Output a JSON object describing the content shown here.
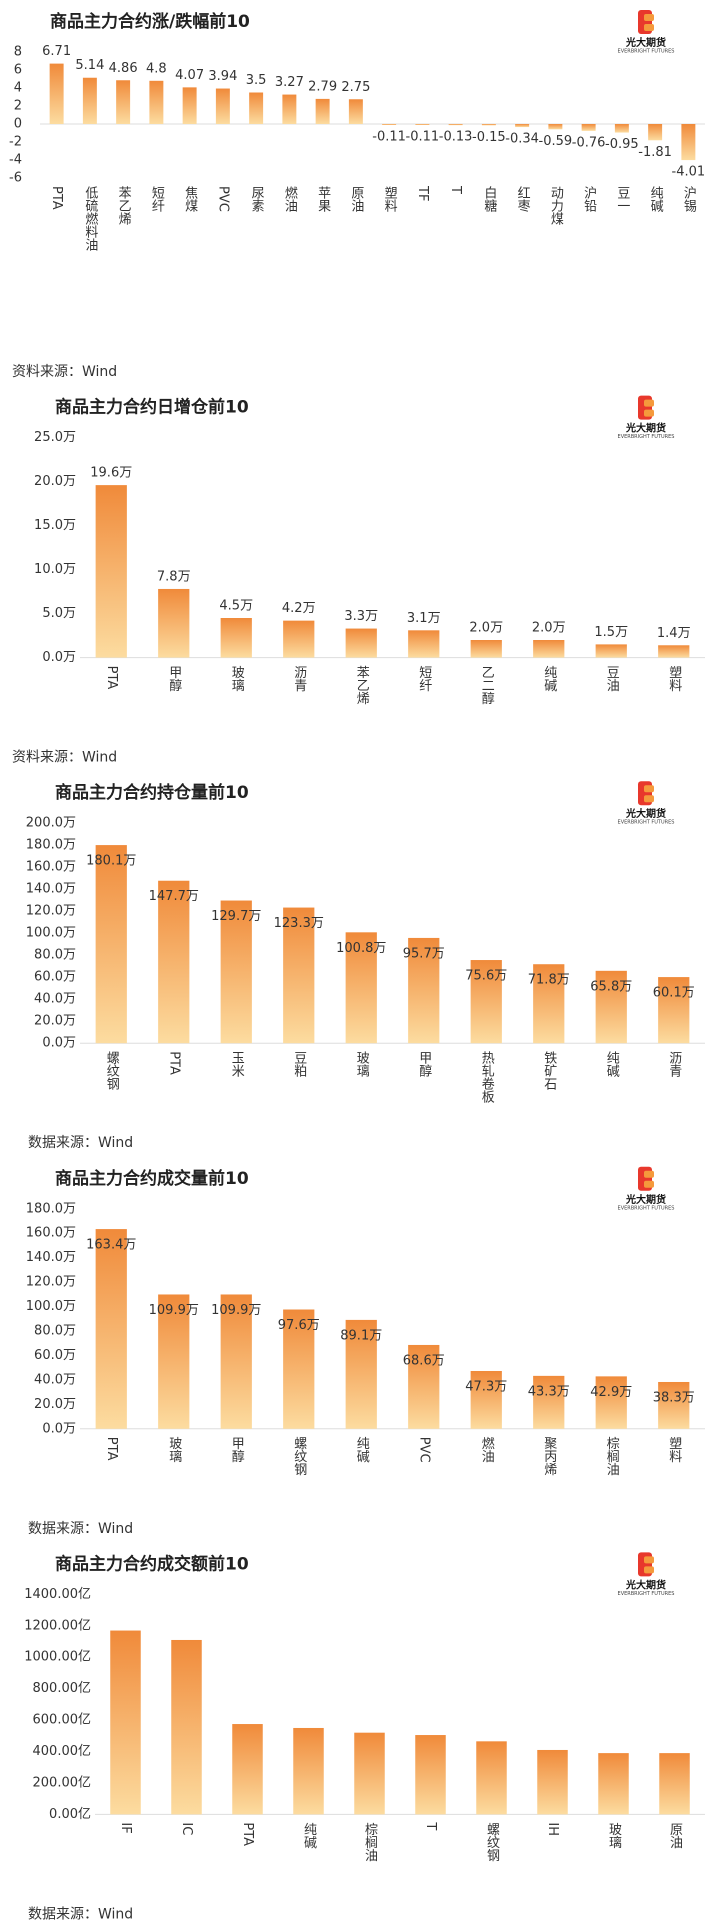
{
  "logo": {
    "name": "光大期货",
    "subtitle": "EVERBRIGHT FUTURES"
  },
  "chart_data": [
    {
      "type": "bar",
      "title": "商品主力合约涨/跌幅前10",
      "source": "资料来源：Wind",
      "color": "#f08a3a",
      "categories": [
        "PTA",
        "低硫燃料油",
        "苯乙烯",
        "短纤",
        "焦煤",
        "PVC",
        "尿素",
        "燃油",
        "苹果",
        "原油",
        "塑料",
        "TF",
        "T",
        "白糖",
        "红枣",
        "动力煤",
        "沪铅",
        "豆一",
        "纯碱",
        "沪锡"
      ],
      "values": [
        6.71,
        5.14,
        4.86,
        4.8,
        4.07,
        3.94,
        3.5,
        3.27,
        2.79,
        2.75,
        -0.11,
        -0.11,
        -0.13,
        -0.15,
        -0.34,
        -0.59,
        -0.76,
        -0.95,
        -1.81,
        -4.01
      ],
      "ylim": [
        -6,
        8
      ],
      "yticks": [
        -6,
        -4,
        -2,
        0,
        2,
        4,
        6,
        8
      ]
    },
    {
      "type": "bar",
      "title": "商品主力合约日增仓前10",
      "source": "资料来源：Wind",
      "color": "#f08a3a",
      "categories": [
        "PTA",
        "甲醇",
        "玻璃",
        "沥青",
        "苯乙烯",
        "短纤",
        "乙二醇",
        "纯碱",
        "豆油",
        "塑料"
      ],
      "values": [
        19.6,
        7.8,
        4.5,
        4.2,
        3.3,
        3.1,
        2.0,
        2.0,
        1.5,
        1.4
      ],
      "value_labels": [
        "19.6万",
        "7.8万",
        "4.5万",
        "4.2万",
        "3.3万",
        "3.1万",
        "2.0万",
        "2.0万",
        "1.5万",
        "1.4万"
      ],
      "ylim": [
        0,
        25
      ],
      "yticks": [
        {
          "value": 0,
          "label": "0.0万"
        },
        {
          "value": 5,
          "label": "5.0万"
        },
        {
          "value": 10,
          "label": "10.0万"
        },
        {
          "value": 15,
          "label": "15.0万"
        },
        {
          "value": 20,
          "label": "20.0万"
        },
        {
          "value": 25,
          "label": "25.0万"
        }
      ]
    },
    {
      "type": "bar",
      "title": "商品主力合约持仓量前10",
      "source": "数据来源：Wind",
      "color": "#f08a3a",
      "categories": [
        "螺纹钢",
        "PTA",
        "玉米",
        "豆粕",
        "玻璃",
        "甲醇",
        "热轧卷板",
        "铁矿石",
        "纯碱",
        "沥青"
      ],
      "values": [
        180.1,
        147.7,
        129.7,
        123.3,
        100.8,
        95.7,
        75.6,
        71.8,
        65.8,
        60.1
      ],
      "value_labels": [
        "180.1万",
        "147.7万",
        "129.7万",
        "123.3万",
        "100.8万",
        "95.7万",
        "75.6万",
        "71.8万",
        "65.8万",
        "60.1万"
      ],
      "ylim": [
        0,
        200
      ],
      "yticks": [
        {
          "value": 0,
          "label": "0.0万"
        },
        {
          "value": 20,
          "label": "20.0万"
        },
        {
          "value": 40,
          "label": "40.0万"
        },
        {
          "value": 60,
          "label": "60.0万"
        },
        {
          "value": 80,
          "label": "80.0万"
        },
        {
          "value": 100,
          "label": "100.0万"
        },
        {
          "value": 120,
          "label": "120.0万"
        },
        {
          "value": 140,
          "label": "140.0万"
        },
        {
          "value": 160,
          "label": "160.0万"
        },
        {
          "value": 180,
          "label": "180.0万"
        },
        {
          "value": 200,
          "label": "200.0万"
        }
      ]
    },
    {
      "type": "bar",
      "title": "商品主力合约成交量前10",
      "source": "数据来源：Wind",
      "color": "#f08a3a",
      "categories": [
        "PTA",
        "玻璃",
        "甲醇",
        "螺纹钢",
        "纯碱",
        "PVC",
        "燃油",
        "聚丙烯",
        "棕榈油",
        "塑料"
      ],
      "values": [
        163.4,
        109.9,
        109.9,
        97.6,
        89.1,
        68.6,
        47.3,
        43.3,
        42.9,
        38.3
      ],
      "value_labels": [
        "163.4万",
        "109.9万",
        "109.9万",
        "97.6万",
        "89.1万",
        "68.6万",
        "47.3万",
        "43.3万",
        "42.9万",
        "38.3万"
      ],
      "ylim": [
        0,
        180
      ],
      "yticks": [
        {
          "value": 0,
          "label": "0.0万"
        },
        {
          "value": 20,
          "label": "20.0万"
        },
        {
          "value": 40,
          "label": "40.0万"
        },
        {
          "value": 60,
          "label": "60.0万"
        },
        {
          "value": 80,
          "label": "80.0万"
        },
        {
          "value": 100,
          "label": "100.0万"
        },
        {
          "value": 120,
          "label": "120.0万"
        },
        {
          "value": 140,
          "label": "140.0万"
        },
        {
          "value": 160,
          "label": "160.0万"
        },
        {
          "value": 180,
          "label": "180.0万"
        }
      ]
    },
    {
      "type": "bar",
      "title": "商品主力合约成交额前10",
      "source": "数据来源：Wind",
      "color": "#f08a3a",
      "categories": [
        "IF",
        "IC",
        "PTA",
        "纯碱",
        "棕榈油",
        "T",
        "螺纹钢",
        "IH",
        "玻璃",
        "原油"
      ],
      "values": [
        1170,
        1110,
        575,
        550,
        520,
        505,
        465,
        410,
        390,
        390
      ],
      "ylim": [
        0,
        1400
      ],
      "yticks": [
        {
          "value": 0,
          "label": "0.00亿"
        },
        {
          "value": 200,
          "label": "200.00亿"
        },
        {
          "value": 400,
          "label": "400.00亿"
        },
        {
          "value": 600,
          "label": "600.00亿"
        },
        {
          "value": 800,
          "label": "800.00亿"
        },
        {
          "value": 1000,
          "label": "1000.00亿"
        },
        {
          "value": 1200,
          "label": "1200.00亿"
        },
        {
          "value": 1400,
          "label": "1400.00亿"
        }
      ]
    }
  ]
}
